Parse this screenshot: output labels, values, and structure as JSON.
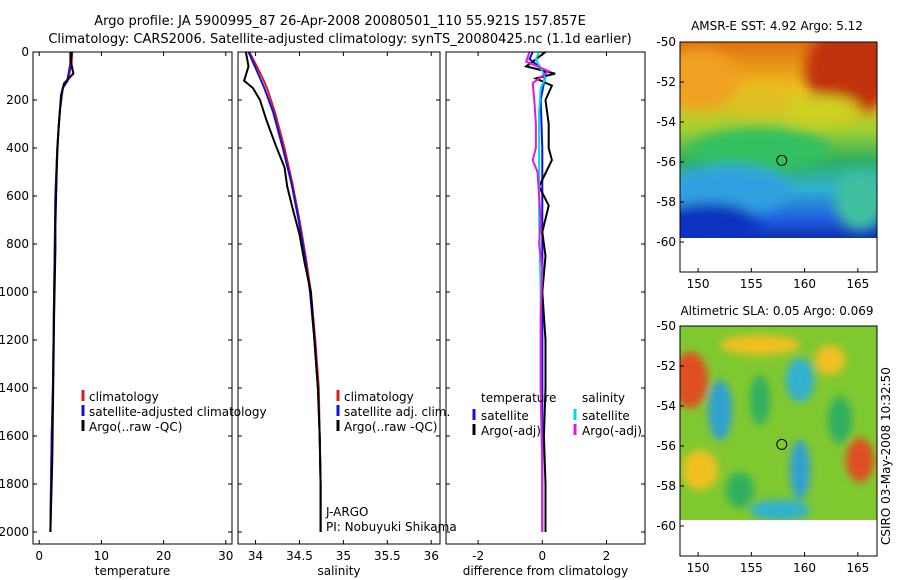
{
  "title": {
    "line1": "Argo profile: JA 5900995_87 26-Apr-2008 20080501_110 55.921S 157.857E",
    "line2": "Climatology: CARS2006. Satellite-adjusted climatology: synTS_20080425.nc (1.1d earlier)"
  },
  "side_label": "CSIRO 03-May-2008 10:32:50",
  "colors": {
    "climatology": "#e01818",
    "satellite": "#1010e0",
    "argo": "#000000",
    "satellite_sal": "#00dcdc",
    "argo_sal": "#e018e0"
  },
  "chart_data": [
    {
      "type": "line",
      "id": "temperature",
      "xlabel": "temperature",
      "xlim": [
        -1,
        31
      ],
      "ylim": [
        2050,
        0
      ],
      "xticks": [
        "0",
        "10",
        "20",
        "30"
      ],
      "xtick_values": [
        0,
        10,
        20,
        30
      ],
      "yticks": [
        "0",
        "200",
        "400",
        "600",
        "800",
        "1000",
        "1200",
        "1400",
        "1600",
        "1800",
        "2000"
      ],
      "ytick_values": [
        0,
        200,
        400,
        600,
        800,
        1000,
        1200,
        1400,
        1600,
        1800,
        2000
      ],
      "legend": [
        "climatology",
        "satellite-adjusted climatology",
        "Argo(..raw -QC)"
      ],
      "series": [
        {
          "name": "climatology",
          "color": "#e01818",
          "points": [
            [
              5.3,
              0
            ],
            [
              5.2,
              50
            ],
            [
              4.6,
              120
            ],
            [
              3.8,
              150
            ],
            [
              3.3,
              250
            ],
            [
              2.9,
              400
            ],
            [
              2.6,
              600
            ],
            [
              2.5,
              800
            ],
            [
              2.4,
              1000
            ],
            [
              2.3,
              1200
            ],
            [
              2.2,
              1400
            ],
            [
              2.0,
              1600
            ],
            [
              1.9,
              1800
            ],
            [
              1.8,
              2000
            ]
          ]
        },
        {
          "name": "satellite-adjusted climatology",
          "color": "#1010e0",
          "points": [
            [
              5.0,
              0
            ],
            [
              5.0,
              50
            ],
            [
              4.5,
              120
            ],
            [
              3.8,
              150
            ],
            [
              3.3,
              250
            ],
            [
              2.9,
              400
            ],
            [
              2.6,
              600
            ],
            [
              2.5,
              800
            ],
            [
              2.4,
              1000
            ],
            [
              2.3,
              1200
            ],
            [
              2.2,
              1400
            ],
            [
              2.0,
              1600
            ],
            [
              1.9,
              1800
            ],
            [
              1.8,
              2000
            ]
          ]
        },
        {
          "name": "Argo(..raw -QC)",
          "color": "#000000",
          "points": [
            [
              5.2,
              0
            ],
            [
              5.1,
              40
            ],
            [
              5.5,
              90
            ],
            [
              4.0,
              130
            ],
            [
              3.5,
              180
            ],
            [
              3.3,
              260
            ],
            [
              3.1,
              320
            ],
            [
              2.9,
              420
            ],
            [
              2.8,
              520
            ],
            [
              2.7,
              620
            ],
            [
              2.6,
              720
            ],
            [
              2.6,
              820
            ],
            [
              2.5,
              950
            ],
            [
              2.4,
              1100
            ],
            [
              2.3,
              1300
            ],
            [
              2.2,
              1500
            ],
            [
              2.1,
              1700
            ],
            [
              1.9,
              1900
            ],
            [
              1.8,
              2000
            ]
          ]
        }
      ]
    },
    {
      "type": "line",
      "id": "salinity",
      "xlabel": "salinity",
      "xlim": [
        33.8,
        36.1
      ],
      "ylim": [
        2050,
        0
      ],
      "xticks": [
        "34",
        "34.5",
        "35",
        "35.5",
        "36"
      ],
      "xtick_values": [
        34,
        34.5,
        35,
        35.5,
        36
      ],
      "legend": [
        "climatology",
        "satellite adj. clim.",
        "Argo(..raw -QC)"
      ],
      "annotations": [
        "J-ARGO",
        "PI: Nobuyuki Shikama"
      ],
      "series": [
        {
          "name": "climatology",
          "color": "#e01818",
          "points": [
            [
              33.93,
              0
            ],
            [
              34.0,
              50
            ],
            [
              34.07,
              100
            ],
            [
              34.13,
              150
            ],
            [
              34.22,
              250
            ],
            [
              34.33,
              400
            ],
            [
              34.42,
              550
            ],
            [
              34.5,
              700
            ],
            [
              34.57,
              850
            ],
            [
              34.63,
              1000
            ],
            [
              34.68,
              1200
            ],
            [
              34.72,
              1400
            ],
            [
              34.73,
              1600
            ],
            [
              34.74,
              1800
            ],
            [
              34.74,
              2000
            ]
          ]
        },
        {
          "name": "satellite adj. clim.",
          "color": "#1010e0",
          "points": [
            [
              33.92,
              0
            ],
            [
              33.98,
              50
            ],
            [
              34.04,
              100
            ],
            [
              34.1,
              150
            ],
            [
              34.2,
              250
            ],
            [
              34.31,
              400
            ],
            [
              34.41,
              550
            ],
            [
              34.49,
              700
            ],
            [
              34.56,
              850
            ],
            [
              34.62,
              1000
            ],
            [
              34.67,
              1200
            ],
            [
              34.71,
              1400
            ],
            [
              34.73,
              1600
            ],
            [
              34.74,
              1800
            ],
            [
              34.74,
              2000
            ]
          ]
        },
        {
          "name": "Argo(..raw -QC)",
          "color": "#000000",
          "points": [
            [
              33.89,
              0
            ],
            [
              33.92,
              60
            ],
            [
              33.87,
              120
            ],
            [
              33.97,
              150
            ],
            [
              34.05,
              200
            ],
            [
              34.12,
              280
            ],
            [
              34.22,
              380
            ],
            [
              34.33,
              480
            ],
            [
              34.36,
              560
            ],
            [
              34.42,
              650
            ],
            [
              34.5,
              760
            ],
            [
              34.56,
              880
            ],
            [
              34.63,
              1000
            ],
            [
              34.67,
              1200
            ],
            [
              34.71,
              1400
            ],
            [
              34.73,
              1600
            ],
            [
              34.74,
              1800
            ],
            [
              34.74,
              2000
            ]
          ]
        }
      ]
    },
    {
      "type": "line",
      "id": "difference",
      "xlabel": "difference from climatology",
      "xlim": [
        -3,
        3.2
      ],
      "ylim": [
        2050,
        0
      ],
      "xticks": [
        "-2",
        "0",
        "2"
      ],
      "xtick_values": [
        -2,
        0,
        2
      ],
      "legend_left_title": "temperature",
      "legend_right_title": "salinity",
      "legend_left": [
        "satellite",
        "Argo(-adj)"
      ],
      "legend_right": [
        "satellite",
        "Argo(-adj)"
      ],
      "series": [
        {
          "name": "temperature satellite",
          "color": "#1010e0",
          "points": [
            [
              -0.3,
              0
            ],
            [
              -0.4,
              30
            ],
            [
              -0.1,
              60
            ],
            [
              0.1,
              90
            ],
            [
              0.05,
              130
            ],
            [
              -0.05,
              200
            ],
            [
              0.0,
              400
            ],
            [
              0.0,
              800
            ],
            [
              0.0,
              1200
            ],
            [
              0.0,
              1600
            ],
            [
              0.0,
              2000
            ]
          ]
        },
        {
          "name": "temperature Argo(-adj)",
          "color": "#000000",
          "points": [
            [
              0.1,
              0
            ],
            [
              -0.5,
              60
            ],
            [
              0.4,
              90
            ],
            [
              -0.2,
              110
            ],
            [
              0.3,
              140
            ],
            [
              0.1,
              200
            ],
            [
              0.2,
              300
            ],
            [
              0.2,
              400
            ],
            [
              0.3,
              450
            ],
            [
              -0.1,
              560
            ],
            [
              0.2,
              640
            ],
            [
              0.0,
              750
            ],
            [
              0.1,
              850
            ],
            [
              0.0,
              1000
            ],
            [
              0.1,
              1200
            ],
            [
              0.1,
              1400
            ],
            [
              0.05,
              1600
            ],
            [
              0.1,
              1800
            ],
            [
              0.1,
              2000
            ]
          ]
        },
        {
          "name": "salinity satellite",
          "color": "#00dcdc",
          "points": [
            [
              -0.1,
              0
            ],
            [
              -0.2,
              30
            ],
            [
              0.0,
              80
            ],
            [
              0.1,
              110
            ],
            [
              -0.05,
              150
            ],
            [
              -0.1,
              250
            ],
            [
              -0.1,
              400
            ],
            [
              -0.1,
              700
            ],
            [
              -0.05,
              1000
            ],
            [
              -0.05,
              1400
            ],
            [
              0.0,
              1800
            ],
            [
              0.0,
              2000
            ]
          ]
        },
        {
          "name": "salinity Argo(-adj)",
          "color": "#e018e0",
          "points": [
            [
              -0.4,
              0
            ],
            [
              -0.5,
              40
            ],
            [
              0.2,
              80
            ],
            [
              -0.3,
              130
            ],
            [
              -0.25,
              200
            ],
            [
              -0.2,
              300
            ],
            [
              -0.2,
              400
            ],
            [
              -0.3,
              450
            ],
            [
              -0.15,
              500
            ],
            [
              -0.05,
              700
            ],
            [
              -0.1,
              800
            ],
            [
              0.0,
              900
            ],
            [
              -0.05,
              1100
            ],
            [
              -0.05,
              1400
            ],
            [
              0.0,
              1700
            ],
            [
              0.0,
              2000
            ]
          ]
        }
      ]
    },
    {
      "type": "heatmap",
      "id": "sst_map",
      "title": "AMSR-E SST: 4.92 Argo: 5.12",
      "xlim": [
        148.3,
        166.8
      ],
      "ylim": [
        -61.5,
        -50
      ],
      "xticks": [
        "150",
        "155",
        "160",
        "165"
      ],
      "xtick_values": [
        150,
        155,
        160,
        165
      ],
      "yticks": [
        "-50",
        "-52",
        "-54",
        "-56",
        "-58",
        "-60"
      ],
      "ytick_values": [
        -50,
        -52,
        -54,
        -56,
        -58,
        -60
      ],
      "data_extent": {
        "lon": [
          148.3,
          166.8
        ],
        "lat": [
          -60,
          -50
        ]
      },
      "float_position": [
        157.857,
        -55.921
      ]
    },
    {
      "type": "heatmap",
      "id": "sla_map",
      "title": "Altimetric SLA: 0.05 Argo: 0.069",
      "xlim": [
        148.3,
        166.8
      ],
      "ylim": [
        -61.5,
        -50
      ],
      "xticks": [
        "150",
        "155",
        "160",
        "165"
      ],
      "xtick_values": [
        150,
        155,
        160,
        165
      ],
      "yticks": [
        "-50",
        "-52",
        "-54",
        "-56",
        "-58",
        "-60"
      ],
      "ytick_values": [
        -50,
        -52,
        -54,
        -56,
        -58,
        -60
      ],
      "data_extent": {
        "lon": [
          148.3,
          166.8
        ],
        "lat": [
          -60,
          -50
        ]
      },
      "float_position": [
        157.857,
        -55.921
      ]
    }
  ]
}
